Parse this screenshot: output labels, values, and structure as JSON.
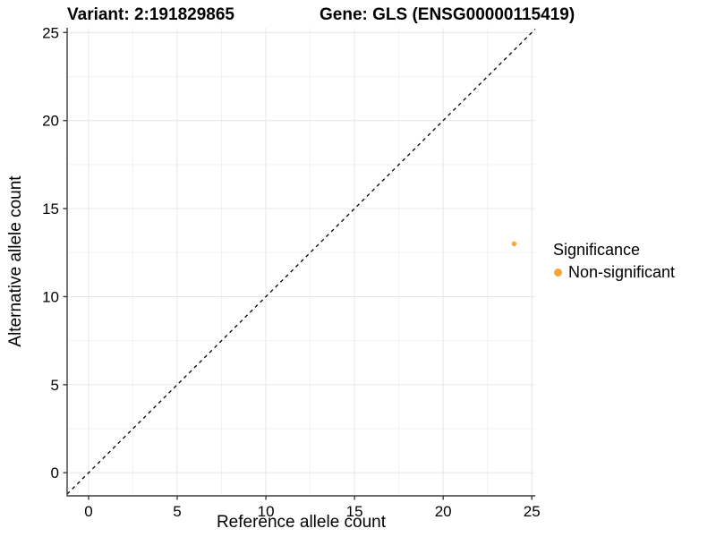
{
  "chart_data": {
    "type": "scatter",
    "title_left": "Variant: 2:191829865",
    "title_right": "Gene: GLS (ENSG00000115419)",
    "xlabel": "Reference allele count",
    "ylabel": "Alternative allele count",
    "xlim": [
      -1.21,
      25.19
    ],
    "ylim": [
      -1.31,
      25.27
    ],
    "x_ticks": [
      0,
      5,
      10,
      15,
      20,
      25
    ],
    "y_ticks": [
      0,
      5,
      10,
      15,
      20,
      25
    ],
    "x_minor_ticks": [
      2.5,
      7.5,
      12.5,
      17.5,
      22.5
    ],
    "y_minor_ticks": [
      2.5,
      7.5,
      12.5,
      17.5,
      22.5
    ],
    "grid": true,
    "identity_line": {
      "slope": 1,
      "intercept": 0,
      "style": "dashed",
      "color": "#000000"
    },
    "series": [
      {
        "name": "Non-significant",
        "color": "#FAA43C",
        "point_radius": 2.7,
        "points": [
          {
            "x": 24,
            "y": 13
          }
        ]
      }
    ],
    "legend": {
      "title": "Significance",
      "position": "right",
      "items": [
        {
          "label": "Non-significant",
          "color": "#FAA43C"
        }
      ]
    },
    "colors": {
      "grid_major": "#E6E6E6",
      "grid_minor": "#F2F2F2",
      "axis": "#3C3C3C",
      "text": "#000000",
      "background": "#FFFFFF"
    }
  }
}
